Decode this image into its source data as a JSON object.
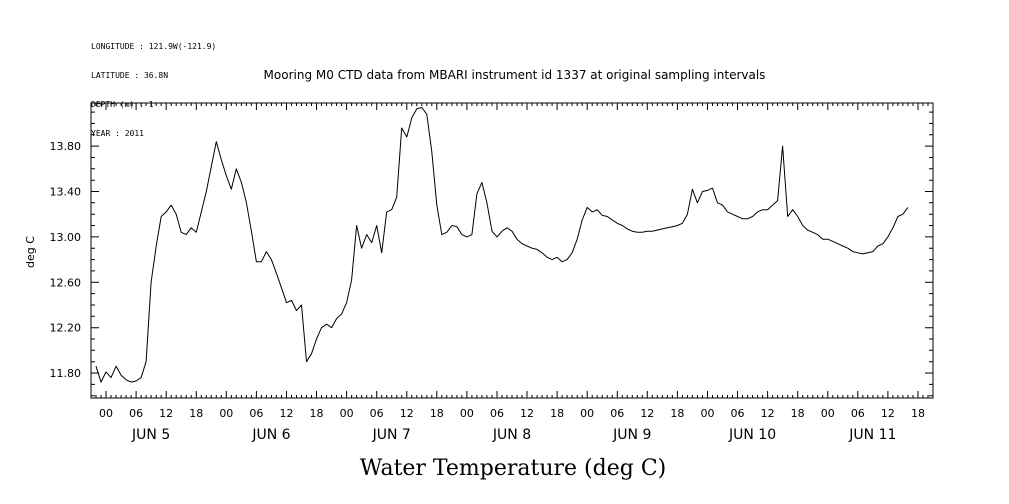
{
  "meta_lines": [
    "LONGITUDE : 121.9W(-121.9)",
    "LATITUDE : 36.8N",
    "DEPTH (m) : 1",
    "YEAR : 2011"
  ],
  "chart_data": {
    "type": "line",
    "title": "Mooring M0 CTD data from MBARI instrument id 1337 at original sampling intervals",
    "xlabel": "Water Temperature (deg C)",
    "ylabel": "deg C",
    "ylim": [
      11.58,
      14.18
    ],
    "xlim_hours": [
      -3,
      165
    ],
    "yticks": [
      "11.80",
      "12.20",
      "12.60",
      "13.00",
      "13.40",
      "13.80"
    ],
    "hour_ticks": [
      "00",
      "06",
      "12",
      "18"
    ],
    "days": [
      "JUN 5",
      "JUN 6",
      "JUN 7",
      "JUN 8",
      "JUN 9",
      "JUN 10",
      "JUN 11"
    ],
    "series": [
      {
        "name": "",
        "color": "#000000",
        "points": [
          [
            -2,
            11.86
          ],
          [
            -1,
            11.72
          ],
          [
            0,
            11.81
          ],
          [
            1,
            11.76
          ],
          [
            2,
            11.86
          ],
          [
            3,
            11.78
          ],
          [
            4,
            11.74
          ],
          [
            5,
            11.72
          ],
          [
            6,
            11.73
          ],
          [
            7,
            11.76
          ],
          [
            8,
            11.9
          ],
          [
            9,
            12.6
          ],
          [
            10,
            12.92
          ],
          [
            11,
            13.18
          ],
          [
            12,
            13.22
          ],
          [
            13,
            13.28
          ],
          [
            14,
            13.2
          ],
          [
            15,
            13.04
          ],
          [
            16,
            13.02
          ],
          [
            17,
            13.08
          ],
          [
            18,
            13.04
          ],
          [
            19,
            13.22
          ],
          [
            20,
            13.4
          ],
          [
            21,
            13.62
          ],
          [
            22,
            13.84
          ],
          [
            23,
            13.68
          ],
          [
            24,
            13.54
          ],
          [
            25,
            13.42
          ],
          [
            26,
            13.6
          ],
          [
            27,
            13.48
          ],
          [
            28,
            13.3
          ],
          [
            29,
            13.05
          ],
          [
            30,
            12.78
          ],
          [
            31,
            12.78
          ],
          [
            32,
            12.87
          ],
          [
            33,
            12.8
          ],
          [
            34,
            12.68
          ],
          [
            35,
            12.55
          ],
          [
            36,
            12.42
          ],
          [
            37,
            12.44
          ],
          [
            38,
            12.35
          ],
          [
            39,
            12.4
          ],
          [
            40,
            11.9
          ],
          [
            41,
            11.97
          ],
          [
            42,
            12.1
          ],
          [
            43,
            12.2
          ],
          [
            44,
            12.23
          ],
          [
            45,
            12.2
          ],
          [
            46,
            12.28
          ],
          [
            47,
            12.32
          ],
          [
            48,
            12.42
          ],
          [
            49,
            12.62
          ],
          [
            50,
            13.1
          ],
          [
            51,
            12.9
          ],
          [
            52,
            13.02
          ],
          [
            53,
            12.95
          ],
          [
            54,
            13.1
          ],
          [
            55,
            12.86
          ],
          [
            56,
            13.22
          ],
          [
            57,
            13.24
          ],
          [
            58,
            13.35
          ],
          [
            59,
            13.96
          ],
          [
            60,
            13.88
          ],
          [
            61,
            14.05
          ],
          [
            62,
            14.13
          ],
          [
            63,
            14.14
          ],
          [
            64,
            14.08
          ],
          [
            65,
            13.75
          ],
          [
            66,
            13.28
          ],
          [
            67,
            13.02
          ],
          [
            68,
            13.04
          ],
          [
            69,
            13.1
          ],
          [
            70,
            13.09
          ],
          [
            71,
            13.02
          ],
          [
            72,
            13.0
          ],
          [
            73,
            13.02
          ],
          [
            74,
            13.38
          ],
          [
            75,
            13.48
          ],
          [
            76,
            13.3
          ],
          [
            77,
            13.05
          ],
          [
            78,
            13.0
          ],
          [
            79,
            13.05
          ],
          [
            80,
            13.08
          ],
          [
            81,
            13.05
          ],
          [
            82,
            12.98
          ],
          [
            83,
            12.94
          ],
          [
            84,
            12.92
          ],
          [
            85,
            12.9
          ],
          [
            86,
            12.89
          ],
          [
            87,
            12.86
          ],
          [
            88,
            12.82
          ],
          [
            89,
            12.8
          ],
          [
            90,
            12.82
          ],
          [
            91,
            12.78
          ],
          [
            92,
            12.8
          ],
          [
            93,
            12.86
          ],
          [
            94,
            12.98
          ],
          [
            95,
            13.15
          ],
          [
            96,
            13.26
          ],
          [
            97,
            13.22
          ],
          [
            98,
            13.24
          ],
          [
            99,
            13.19
          ],
          [
            100,
            13.18
          ],
          [
            101,
            13.15
          ],
          [
            102,
            13.12
          ],
          [
            103,
            13.1
          ],
          [
            104,
            13.07
          ],
          [
            105,
            13.05
          ],
          [
            106,
            13.04
          ],
          [
            107,
            13.04
          ],
          [
            108,
            13.05
          ],
          [
            109,
            13.05
          ],
          [
            110,
            13.06
          ],
          [
            111,
            13.07
          ],
          [
            112,
            13.08
          ],
          [
            113,
            13.09
          ],
          [
            114,
            13.1
          ],
          [
            115,
            13.12
          ],
          [
            116,
            13.2
          ],
          [
            117,
            13.42
          ],
          [
            118,
            13.3
          ],
          [
            119,
            13.4
          ],
          [
            120,
            13.41
          ],
          [
            121,
            13.43
          ],
          [
            122,
            13.3
          ],
          [
            123,
            13.28
          ],
          [
            124,
            13.22
          ],
          [
            125,
            13.2
          ],
          [
            126,
            13.18
          ],
          [
            127,
            13.16
          ],
          [
            128,
            13.16
          ],
          [
            129,
            13.18
          ],
          [
            130,
            13.22
          ],
          [
            131,
            13.24
          ],
          [
            132,
            13.24
          ],
          [
            133,
            13.28
          ],
          [
            134,
            13.32
          ],
          [
            135,
            13.8
          ],
          [
            136,
            13.18
          ],
          [
            137,
            13.24
          ],
          [
            138,
            13.18
          ],
          [
            139,
            13.1
          ],
          [
            140,
            13.06
          ],
          [
            141,
            13.04
          ],
          [
            142,
            13.02
          ],
          [
            143,
            12.98
          ],
          [
            144,
            12.98
          ],
          [
            145,
            12.96
          ],
          [
            146,
            12.94
          ],
          [
            147,
            12.92
          ],
          [
            148,
            12.9
          ],
          [
            149,
            12.87
          ],
          [
            150,
            12.86
          ],
          [
            151,
            12.85
          ],
          [
            152,
            12.86
          ],
          [
            153,
            12.87
          ],
          [
            154,
            12.92
          ],
          [
            155,
            12.94
          ],
          [
            156,
            13.0
          ],
          [
            157,
            13.08
          ],
          [
            158,
            13.18
          ],
          [
            159,
            13.2
          ],
          [
            160,
            13.26
          ]
        ]
      }
    ]
  }
}
